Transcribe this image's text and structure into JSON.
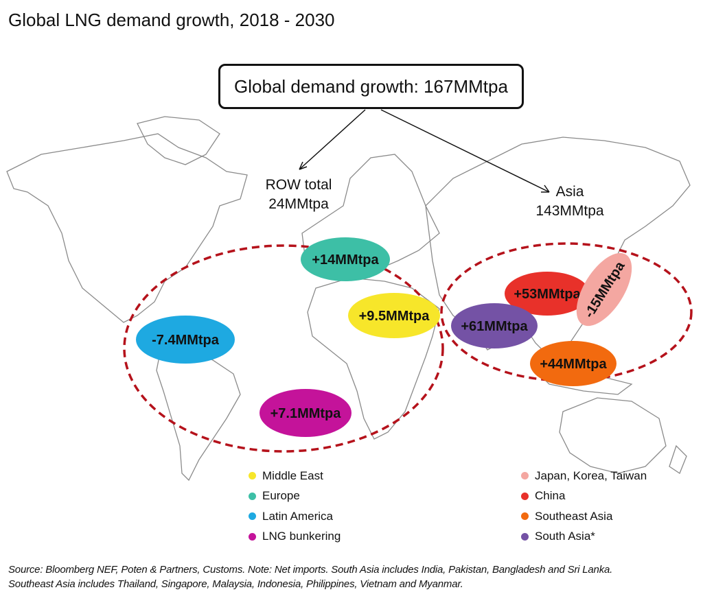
{
  "title": "Global LNG demand growth, 2018 - 2030",
  "callout": "Global demand growth: 167MMtpa",
  "groups": {
    "row": {
      "line1": "ROW total",
      "line2": "24MMtpa"
    },
    "asia": {
      "line1": "Asia",
      "line2": "143MMtpa"
    }
  },
  "bubbles": [
    {
      "region": "Europe",
      "label": "+14MMtpa",
      "color": "#3dbfa6"
    },
    {
      "region": "Middle East",
      "label": "+9.5MMtpa",
      "color": "#f7e62a"
    },
    {
      "region": "Latin America",
      "label": "-7.4MMtpa",
      "color": "#1ea9e1"
    },
    {
      "region": "LNG bunkering",
      "label": "+7.1MMtpa",
      "color": "#c4139a"
    },
    {
      "region": "China",
      "label": "+53MMtpa",
      "color": "#e8312a"
    },
    {
      "region": "Japan, Korea, Taiwan",
      "label": "-15MMtpa",
      "color": "#f4a7a1"
    },
    {
      "region": "South Asia",
      "label": "+61MMtpa",
      "color": "#7452a5"
    },
    {
      "region": "Southeast Asia",
      "label": "+44MMtpa",
      "color": "#f26a0f"
    }
  ],
  "legend_left": [
    {
      "label": "Middle East",
      "color": "#f7e62a"
    },
    {
      "label": "Europe",
      "color": "#3dbfa6"
    },
    {
      "label": "Latin America",
      "color": "#1ea9e1"
    },
    {
      "label": "LNG bunkering",
      "color": "#c4139a"
    }
  ],
  "legend_right": [
    {
      "label": "Japan, Korea, Taiwan",
      "color": "#f4a7a1"
    },
    {
      "label": "China",
      "color": "#e8312a"
    },
    {
      "label": "Southeast Asia",
      "color": "#f26a0f"
    },
    {
      "label": "South Asia*",
      "color": "#7452a5"
    }
  ],
  "group_outline_color": "#b5121b",
  "footer": {
    "line1": "Source: Bloomberg NEF, Poten & Partners, Customs. Note: Net imports. South Asia includes India, Pakistan, Bangladesh and Sri Lanka.",
    "line2": "Southeast Asia includes Thailand, Singapore, Malaysia, Indonesia, Philippines, Vietnam and Myanmar."
  }
}
